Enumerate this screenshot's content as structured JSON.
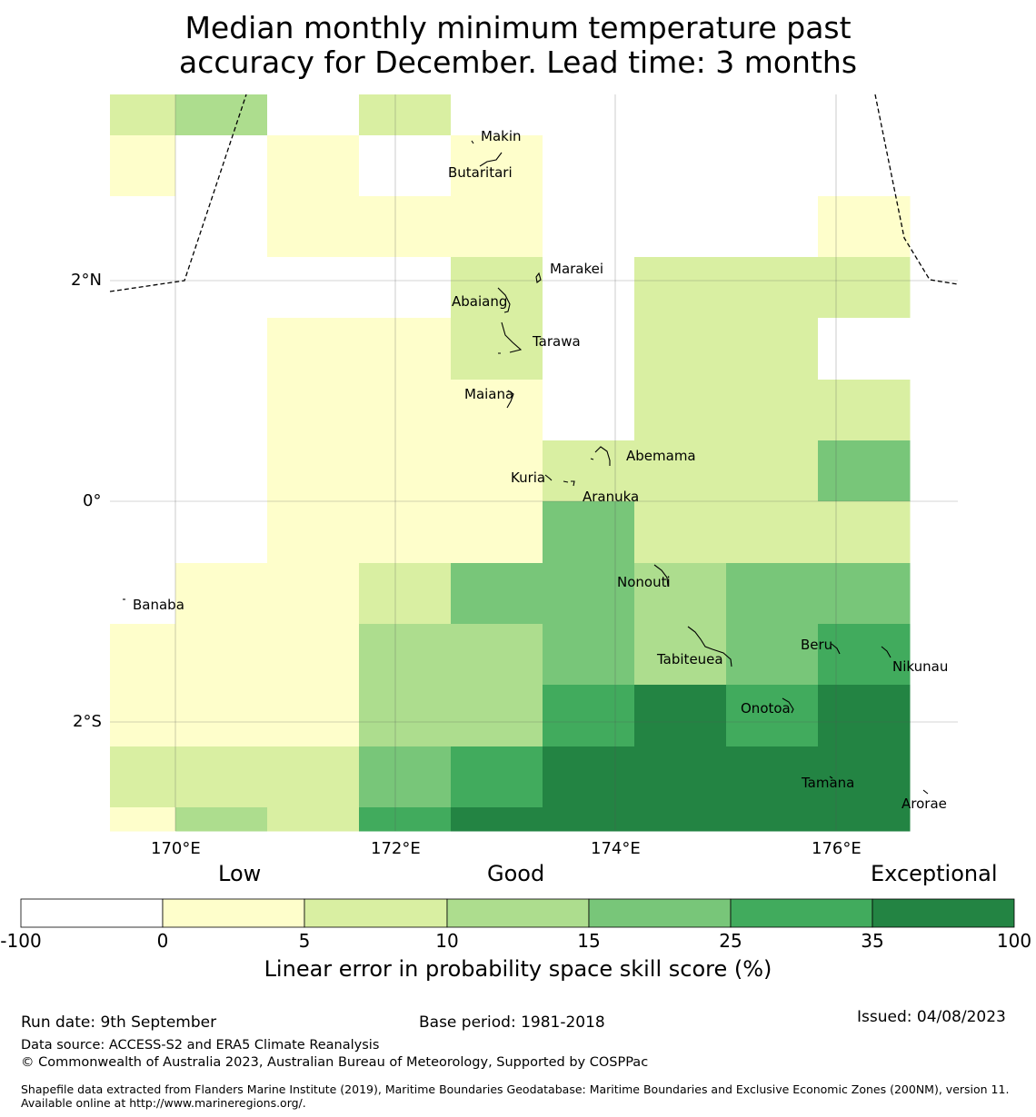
{
  "title_line1": "Median monthly minimum temperature past",
  "title_line2": "accuracy for December. Lead time: 3 months",
  "colors": {
    "c0": "#ffffff",
    "c1": "#fefecb",
    "c2": "#d9efa2",
    "c3": "#addd8e",
    "c4": "#78c679",
    "c5": "#41ab5d",
    "c6": "#238443"
  },
  "map": {
    "lat_ticks": [
      "2°N",
      "0°",
      "2°S"
    ],
    "lon_ticks": [
      "170°E",
      "172°E",
      "174°E",
      "176°E"
    ],
    "grid_cells": [
      [
        "c2",
        "c3",
        "c0",
        "c2",
        "c0",
        "c0",
        "c0",
        "c0",
        "c0"
      ],
      [
        "c1",
        "c0",
        "c1",
        "c0",
        "c1",
        "c0",
        "c0",
        "c0",
        "c0"
      ],
      [
        "c0",
        "c0",
        "c1",
        "c1",
        "c1",
        "c0",
        "c0",
        "c0",
        "c1"
      ],
      [
        "c0",
        "c0",
        "c0",
        "c0",
        "c2",
        "c0",
        "c2",
        "c2",
        "c2"
      ],
      [
        "c0",
        "c0",
        "c1",
        "c1",
        "c2",
        "c0",
        "c2",
        "c2",
        "c0"
      ],
      [
        "c0",
        "c0",
        "c1",
        "c1",
        "c1",
        "c0",
        "c2",
        "c2",
        "c2"
      ],
      [
        "c0",
        "c0",
        "c1",
        "c1",
        "c1",
        "c2",
        "c2",
        "c2",
        "c4"
      ],
      [
        "c0",
        "c0",
        "c1",
        "c1",
        "c1",
        "c4",
        "c2",
        "c2",
        "c2"
      ],
      [
        "c0",
        "c1",
        "c1",
        "c2",
        "c4",
        "c4",
        "c3",
        "c4",
        "c4"
      ],
      [
        "c1",
        "c1",
        "c1",
        "c3",
        "c3",
        "c4",
        "c3",
        "c4",
        "c5"
      ],
      [
        "c1",
        "c1",
        "c1",
        "c3",
        "c3",
        "c5",
        "c6",
        "c5",
        "c6"
      ],
      [
        "c2",
        "c2",
        "c2",
        "c4",
        "c5",
        "c6",
        "c6",
        "c6",
        "c6"
      ],
      [
        "c1",
        "c3",
        "c2",
        "c5",
        "c6",
        "c6",
        "c6",
        "c6",
        "c6"
      ],
      [
        "c3",
        "c4",
        "c3",
        "c2",
        "c4",
        "c5",
        "c6",
        "c6",
        "c6"
      ]
    ],
    "islands": {
      "makin": "Makin",
      "butaritari": "Butaritari",
      "marakei": "Marakei",
      "abaiang": "Abaiang",
      "tarawa": "Tarawa",
      "maiana": "Maiana",
      "abemama": "Abemama",
      "kuria": "Kuria",
      "aranuka": "Aranuka",
      "nonouti": "Nonouti",
      "banaba": "Banaba",
      "tabiteuea": "Tabiteuea",
      "beru": "Beru",
      "nikunau": "Nikunau",
      "onotoa": "Onotoa",
      "tamana": "Tamana",
      "arorae": "Arorae"
    }
  },
  "colorbar": {
    "categories": [
      "Low",
      "Good",
      "Exceptional"
    ],
    "ticks": [
      "-100",
      "0",
      "5",
      "10",
      "15",
      "25",
      "35",
      "100"
    ],
    "label": "Linear error in probability space skill score (%)"
  },
  "footer": {
    "run_date": "Run date: 9th September",
    "base_period": "Base period: 1981-2018",
    "issued": "Issued: 04/08/2023",
    "data_source": "Data source: ACCESS-S2 and ERA5 Climate Reanalysis",
    "copyright": "© Commonwealth of Australia 2023, Australian Bureau of Meteorology, Supported by COSPPac",
    "shapefile": "Shapefile data extracted from Flanders Marine Institute (2019), Maritime Boundaries Geodatabase: Maritime Boundaries and Exclusive Economic Zones (200NM), version 11. Available online at http://www.marineregions.org/."
  }
}
